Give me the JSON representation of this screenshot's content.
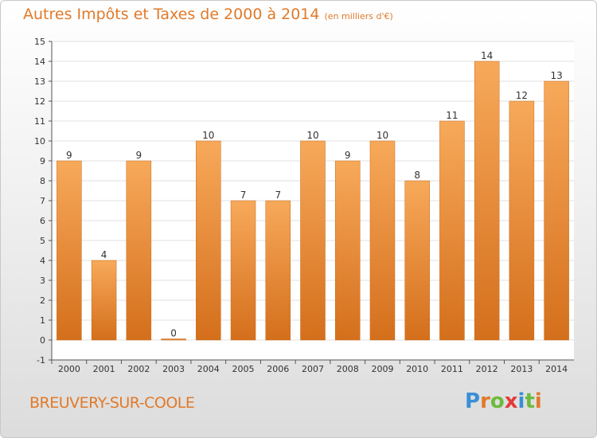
{
  "title": {
    "main": "Autres Impôts et Taxes de 2000 à 2014",
    "unit": "(en milliers d'€)"
  },
  "location": "BREUVERY-SUR-COOLE",
  "logo": {
    "text": "Proxiti",
    "letters": [
      "P",
      "r",
      "o",
      "x",
      "i",
      "t",
      "i"
    ],
    "colors": [
      "#3a8fd6",
      "#e07a2a",
      "#6cbb3c",
      "#e53a3a",
      "#3a8fd6",
      "#6cbb3c",
      "#e07a2a"
    ]
  },
  "colors": {
    "bar_light": "#f7a95a",
    "bar_dark": "#d46f1c",
    "text": "#333333",
    "grid": "#e0e0e0",
    "accent": "#e07a2a"
  },
  "chart_data": {
    "type": "bar",
    "categories": [
      "2000",
      "2001",
      "2002",
      "2003",
      "2004",
      "2005",
      "2006",
      "2007",
      "2008",
      "2009",
      "2010",
      "2011",
      "2012",
      "2013",
      "2014"
    ],
    "values": [
      9,
      4,
      9,
      0,
      10,
      7,
      7,
      10,
      9,
      10,
      8,
      11,
      14,
      12,
      13
    ],
    "data_labels": [
      "9",
      "4",
      "9",
      "0",
      "10",
      "7",
      "7",
      "10",
      "9",
      "10",
      "8",
      "11",
      "14",
      "12",
      "13"
    ],
    "yticks": [
      "-1",
      "0",
      "1",
      "2",
      "3",
      "4",
      "5",
      "6",
      "7",
      "8",
      "9",
      "10",
      "11",
      "12",
      "13",
      "14",
      "15"
    ],
    "ylim": [
      -1,
      15
    ],
    "grid": true,
    "title": "Autres Impôts et Taxes de 2000 à 2014",
    "xlabel": "",
    "ylabel": ""
  }
}
